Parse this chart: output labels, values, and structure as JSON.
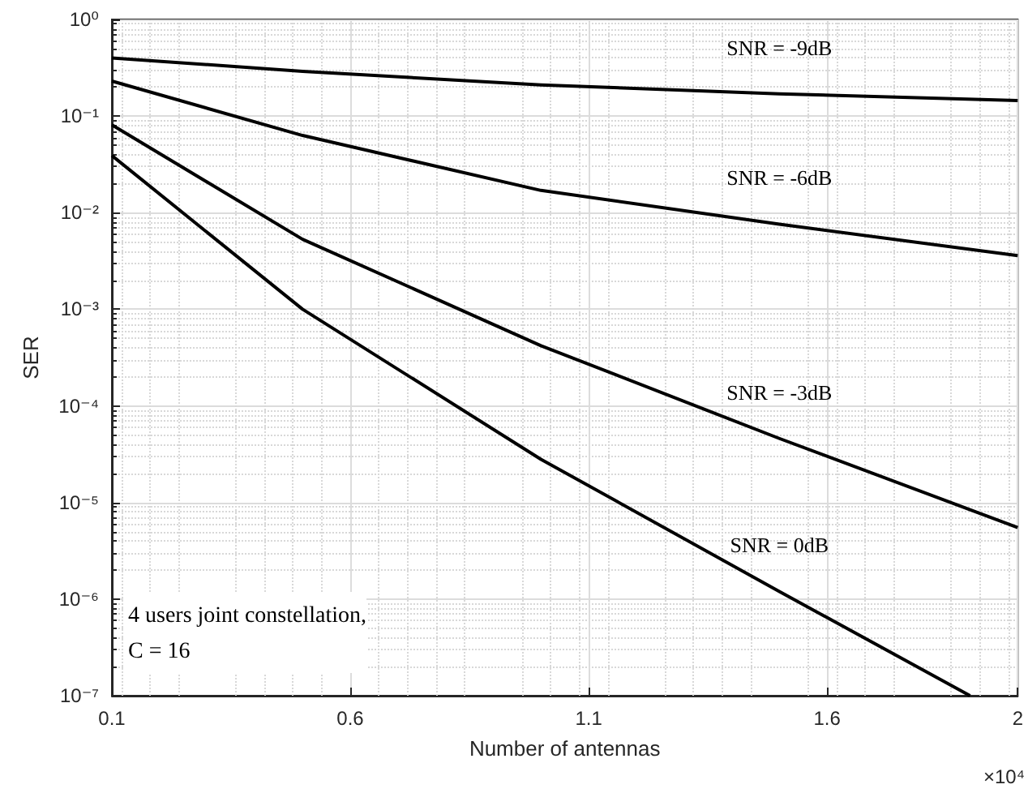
{
  "chart_data": {
    "type": "line",
    "xlabel": "Number of antennas",
    "ylabel": "SER",
    "log": "y",
    "grid": true,
    "marker": "none",
    "line_style": "solid",
    "xlim": [
      0.1,
      2
    ],
    "xticks": [
      0.1,
      0.6,
      1.1,
      1.6,
      2
    ],
    "ylim": [
      1e-07,
      1
    ],
    "yticks": [
      {
        "value": 1e-07,
        "label": "10⁻⁷"
      },
      {
        "value": 1e-06,
        "label": "10⁻⁶"
      },
      {
        "value": 1e-05,
        "label": "10⁻⁵"
      },
      {
        "value": 0.0001,
        "label": "10⁻⁴"
      },
      {
        "value": 0.001,
        "label": "10⁻³"
      },
      {
        "value": 0.01,
        "label": "10⁻²"
      },
      {
        "value": 0.1,
        "label": "10⁻¹"
      },
      {
        "value": 1,
        "label": "10⁰"
      }
    ],
    "x": [
      0.1,
      0.5,
      1,
      1.5,
      2
    ],
    "series": [
      {
        "name": "SNR = -9dB",
        "color": "#000000",
        "values": [
          0.4,
          0.29,
          0.21,
          0.17,
          0.145
        ]
      },
      {
        "name": "SNR = -6dB",
        "color": "#000000",
        "values": [
          0.23,
          0.063,
          0.017,
          0.0076,
          0.0036
        ]
      },
      {
        "name": "SNR = -3dB",
        "color": "#000000",
        "values": [
          0.081,
          0.0053,
          0.00042,
          4.6e-05,
          5.5e-06
        ]
      },
      {
        "name": "SNR = 0dB",
        "color": "#000000",
        "x": [
          0.1,
          0.5,
          1,
          1.5,
          1.9
        ],
        "values": [
          0.039,
          0.001,
          2.8e-05,
          1.2e-06,
          1e-07
        ]
      }
    ],
    "annotations": [
      "4 users joint constellation,\nC = 16",
      "×10⁴"
    ]
  }
}
